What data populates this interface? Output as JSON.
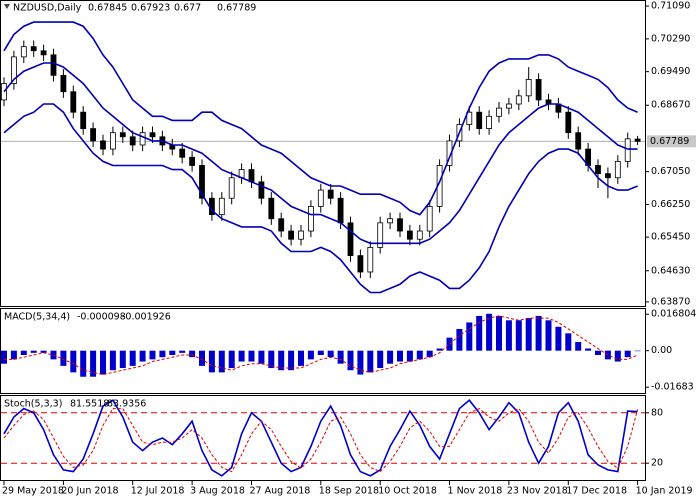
{
  "chart_data": [
    {
      "type": "candlestick",
      "symbol": "NZDUSD,Daily",
      "categories": [
        "29 May 2018",
        null,
        null,
        null,
        null,
        null,
        "20 Jun 2018",
        null,
        null,
        null,
        null,
        null,
        null,
        "12 Jul 2018",
        null,
        null,
        null,
        null,
        null,
        "3 Aug 2018",
        null,
        null,
        null,
        null,
        null,
        "27 Aug 2018",
        null,
        null,
        null,
        null,
        null,
        null,
        "18 Sep 2018",
        null,
        null,
        null,
        null,
        null,
        "10 Oct 2018",
        null,
        null,
        null,
        null,
        null,
        null,
        "1 Nov 2018",
        null,
        null,
        null,
        null,
        null,
        "23 Nov 2018",
        null,
        null,
        null,
        null,
        null,
        "17 Dec 2018",
        null,
        null,
        null,
        null,
        null,
        null,
        "10 Jan 2019"
      ],
      "candles": [
        [
          0.688,
          0.6935,
          0.6865,
          0.692
        ],
        [
          0.692,
          0.7,
          0.6905,
          0.6985
        ],
        [
          0.6985,
          0.7025,
          0.697,
          0.701
        ],
        [
          0.701,
          0.7025,
          0.6985,
          0.7
        ],
        [
          0.7,
          0.7015,
          0.6975,
          0.699
        ],
        [
          0.699,
          0.7005,
          0.6925,
          0.694
        ],
        [
          0.694,
          0.6955,
          0.6885,
          0.69
        ],
        [
          0.69,
          0.6915,
          0.6835,
          0.685
        ],
        [
          0.685,
          0.6865,
          0.6795,
          0.681
        ],
        [
          0.681,
          0.6825,
          0.6765,
          0.678
        ],
        [
          0.678,
          0.6795,
          0.6745,
          0.676
        ],
        [
          0.676,
          0.6815,
          0.6745,
          0.68
        ],
        [
          0.68,
          0.6815,
          0.6775,
          0.679
        ],
        [
          0.679,
          0.6805,
          0.6755,
          0.677
        ],
        [
          0.677,
          0.6815,
          0.6755,
          0.68
        ],
        [
          0.68,
          0.6815,
          0.6775,
          0.679
        ],
        [
          0.679,
          0.6805,
          0.6755,
          0.677
        ],
        [
          0.677,
          0.6785,
          0.6745,
          0.676
        ],
        [
          0.676,
          0.6775,
          0.6725,
          0.674
        ],
        [
          0.674,
          0.6755,
          0.6705,
          0.672
        ],
        [
          0.672,
          0.6735,
          0.6625,
          0.664
        ],
        [
          0.664,
          0.6655,
          0.6585,
          0.66
        ],
        [
          0.66,
          0.6655,
          0.6585,
          0.664
        ],
        [
          0.664,
          0.6705,
          0.6625,
          0.669
        ],
        [
          0.669,
          0.6725,
          0.6675,
          0.671
        ],
        [
          0.671,
          0.6725,
          0.6665,
          0.668
        ],
        [
          0.668,
          0.6695,
          0.6625,
          0.664
        ],
        [
          0.664,
          0.6655,
          0.6575,
          0.659
        ],
        [
          0.659,
          0.6605,
          0.6545,
          0.656
        ],
        [
          0.656,
          0.6575,
          0.6525,
          0.654
        ],
        [
          0.654,
          0.6575,
          0.6525,
          0.656
        ],
        [
          0.656,
          0.6635,
          0.6545,
          0.662
        ],
        [
          0.662,
          0.6675,
          0.6605,
          0.666
        ],
        [
          0.666,
          0.6675,
          0.6625,
          0.664
        ],
        [
          0.664,
          0.6655,
          0.6565,
          0.658
        ],
        [
          0.658,
          0.6595,
          0.6485,
          0.65
        ],
        [
          0.65,
          0.6515,
          0.6445,
          0.646
        ],
        [
          0.646,
          0.6535,
          0.6445,
          0.652
        ],
        [
          0.652,
          0.6595,
          0.6505,
          0.658
        ],
        [
          0.658,
          0.6605,
          0.6565,
          0.659
        ],
        [
          0.659,
          0.6605,
          0.6545,
          0.656
        ],
        [
          0.656,
          0.6575,
          0.6525,
          0.654
        ],
        [
          0.654,
          0.6575,
          0.6525,
          0.656
        ],
        [
          0.656,
          0.6635,
          0.6545,
          0.662
        ],
        [
          0.662,
          0.6735,
          0.6605,
          0.672
        ],
        [
          0.672,
          0.6795,
          0.6705,
          0.678
        ],
        [
          0.678,
          0.6835,
          0.6765,
          0.682
        ],
        [
          0.682,
          0.6865,
          0.6805,
          0.685
        ],
        [
          0.685,
          0.6865,
          0.6795,
          0.681
        ],
        [
          0.681,
          0.6855,
          0.6795,
          0.684
        ],
        [
          0.684,
          0.6875,
          0.6825,
          0.686
        ],
        [
          0.686,
          0.6885,
          0.6845,
          0.687
        ],
        [
          0.687,
          0.6905,
          0.6855,
          0.689
        ],
        [
          0.689,
          0.696,
          0.6875,
          0.693
        ],
        [
          0.693,
          0.6945,
          0.6865,
          0.688
        ],
        [
          0.688,
          0.6895,
          0.6855,
          0.687
        ],
        [
          0.687,
          0.6885,
          0.6835,
          0.685
        ],
        [
          0.685,
          0.6865,
          0.6785,
          0.68
        ],
        [
          0.68,
          0.6815,
          0.6745,
          0.676
        ],
        [
          0.676,
          0.6775,
          0.6705,
          0.672
        ],
        [
          0.672,
          0.6735,
          0.6665,
          0.67
        ],
        [
          0.67,
          0.6715,
          0.664,
          0.669
        ],
        [
          0.669,
          0.6745,
          0.6675,
          0.673
        ],
        [
          0.673,
          0.68,
          0.6715,
          0.6785
        ],
        [
          0.67845,
          0.67923,
          0.677,
          0.67789
        ]
      ],
      "bands": {
        "color": "#0000b4",
        "upper": [
          0.7,
          0.704,
          0.706,
          0.707,
          0.707,
          0.707,
          0.707,
          0.707,
          0.706,
          0.703,
          0.699,
          0.696,
          0.692,
          0.688,
          0.686,
          0.684,
          0.684,
          0.683,
          0.683,
          0.683,
          0.685,
          0.685,
          0.683,
          0.682,
          0.681,
          0.679,
          0.677,
          0.676,
          0.675,
          0.673,
          0.671,
          0.669,
          0.668,
          0.667,
          0.667,
          0.666,
          0.665,
          0.665,
          0.665,
          0.664,
          0.663,
          0.661,
          0.66,
          0.663,
          0.668,
          0.674,
          0.68,
          0.686,
          0.691,
          0.695,
          0.697,
          0.698,
          0.698,
          0.698,
          0.699,
          0.699,
          0.698,
          0.696,
          0.695,
          0.694,
          0.693,
          0.691,
          0.688,
          0.686,
          0.685
        ],
        "middle": [
          0.69,
          0.693,
          0.695,
          0.696,
          0.697,
          0.697,
          0.696,
          0.694,
          0.692,
          0.689,
          0.686,
          0.684,
          0.682,
          0.68,
          0.679,
          0.678,
          0.678,
          0.677,
          0.677,
          0.676,
          0.675,
          0.673,
          0.671,
          0.67,
          0.669,
          0.668,
          0.667,
          0.666,
          0.664,
          0.662,
          0.661,
          0.66,
          0.66,
          0.659,
          0.658,
          0.656,
          0.654,
          0.653,
          0.653,
          0.653,
          0.653,
          0.653,
          0.653,
          0.654,
          0.656,
          0.658,
          0.661,
          0.665,
          0.669,
          0.673,
          0.677,
          0.68,
          0.682,
          0.684,
          0.686,
          0.687,
          0.687,
          0.686,
          0.685,
          0.683,
          0.681,
          0.679,
          0.677,
          0.676,
          0.676
        ],
        "lower": [
          0.68,
          0.682,
          0.684,
          0.685,
          0.687,
          0.687,
          0.685,
          0.681,
          0.678,
          0.675,
          0.673,
          0.672,
          0.672,
          0.672,
          0.672,
          0.672,
          0.672,
          0.671,
          0.671,
          0.669,
          0.665,
          0.661,
          0.659,
          0.658,
          0.657,
          0.657,
          0.657,
          0.656,
          0.653,
          0.651,
          0.651,
          0.651,
          0.652,
          0.651,
          0.649,
          0.646,
          0.643,
          0.641,
          0.641,
          0.642,
          0.643,
          0.645,
          0.646,
          0.645,
          0.644,
          0.642,
          0.642,
          0.644,
          0.647,
          0.651,
          0.657,
          0.662,
          0.666,
          0.67,
          0.673,
          0.675,
          0.676,
          0.676,
          0.675,
          0.672,
          0.669,
          0.667,
          0.666,
          0.666,
          0.667
        ]
      },
      "ylim": [
        0.6377,
        0.7119
      ],
      "yticks": [
        {
          "value": 0.7109,
          "label": "0.71090"
        },
        {
          "value": 0.7029,
          "label": "0.70290"
        },
        {
          "value": 0.6949,
          "label": "0.69490"
        },
        {
          "value": 0.6867,
          "label": "0.68670"
        },
        {
          "value": 0.6705,
          "label": "0.67050"
        },
        {
          "value": 0.6625,
          "label": "0.66250"
        },
        {
          "value": 0.6545,
          "label": "0.65450"
        },
        {
          "value": 0.6463,
          "label": "0.64630"
        },
        {
          "value": 0.6387,
          "label": "0.63870"
        }
      ]
    },
    {
      "type": "macd",
      "title": "MACD(5,34,4)",
      "color": "#0000cc",
      "signal_color": "#e00000",
      "values": [
        -0.006,
        -0.004,
        -0.002,
        -0.001,
        -0.001,
        -0.004,
        -0.007,
        -0.01,
        -0.012,
        -0.012,
        -0.011,
        -0.009,
        -0.008,
        -0.007,
        -0.005,
        -0.004,
        -0.003,
        -0.002,
        -0.001,
        -0.003,
        -0.007,
        -0.01,
        -0.01,
        -0.008,
        -0.005,
        -0.005,
        -0.006,
        -0.008,
        -0.009,
        -0.009,
        -0.007,
        -0.004,
        -0.002,
        -0.003,
        -0.006,
        -0.009,
        -0.011,
        -0.01,
        -0.008,
        -0.006,
        -0.005,
        -0.005,
        -0.004,
        -0.003,
        0.001,
        0.006,
        0.01,
        0.013,
        0.016,
        0.017,
        0.016,
        0.014,
        0.014,
        0.015,
        0.016,
        0.014,
        0.011,
        0.008,
        0.004,
        0.001,
        -0.002,
        -0.004,
        -0.005,
        -0.003,
        -9.8e-05
      ],
      "signal": [
        -0.004,
        -0.004,
        -0.003,
        -0.002,
        -0.001,
        -0.002,
        -0.004,
        -0.006,
        -0.009,
        -0.01,
        -0.011,
        -0.01,
        -0.009,
        -0.008,
        -0.007,
        -0.005,
        -0.004,
        -0.003,
        -0.002,
        -0.002,
        -0.004,
        -0.007,
        -0.008,
        -0.009,
        -0.007,
        -0.006,
        -0.006,
        -0.007,
        -0.008,
        -0.008,
        -0.008,
        -0.006,
        -0.004,
        -0.003,
        -0.004,
        -0.007,
        -0.009,
        -0.01,
        -0.009,
        -0.008,
        -0.006,
        -0.005,
        -0.004,
        -0.003,
        -0.001,
        0.003,
        0.007,
        0.01,
        0.013,
        0.015,
        0.016,
        0.015,
        0.014,
        0.015,
        0.015,
        0.015,
        0.013,
        0.01,
        0.007,
        0.004,
        0.001,
        -0.002,
        -0.004,
        -0.004,
        -0.001926
      ],
      "ylim": [
        -0.0195,
        0.0192
      ],
      "yticks": [
        0.016804,
        {
          "value": 0,
          "label": "0.00"
        },
        -0.01683
      ]
    },
    {
      "type": "stochastic",
      "title": "Stoch(5,3,3)",
      "k_color": "#0000cc",
      "d_color": "#e00000",
      "k": [
        55,
        75,
        85,
        80,
        60,
        30,
        12,
        10,
        25,
        55,
        88,
        95,
        75,
        45,
        35,
        45,
        50,
        42,
        55,
        70,
        35,
        12,
        5,
        15,
        55,
        80,
        70,
        45,
        20,
        10,
        15,
        40,
        70,
        88,
        65,
        30,
        10,
        5,
        12,
        40,
        60,
        82,
        65,
        40,
        25,
        55,
        85,
        95,
        80,
        60,
        75,
        92,
        80,
        45,
        20,
        40,
        80,
        92,
        70,
        30,
        18,
        12,
        10,
        82,
        81.5518
      ],
      "d": [
        50,
        65,
        78,
        82,
        72,
        50,
        28,
        15,
        18,
        35,
        65,
        85,
        85,
        65,
        45,
        42,
        45,
        45,
        50,
        60,
        50,
        30,
        15,
        10,
        30,
        55,
        70,
        60,
        40,
        22,
        14,
        25,
        45,
        70,
        75,
        55,
        30,
        15,
        10,
        22,
        40,
        62,
        70,
        58,
        40,
        40,
        60,
        80,
        85,
        75,
        70,
        80,
        85,
        70,
        45,
        32,
        50,
        75,
        80,
        62,
        40,
        22,
        14,
        40,
        83.9356
      ],
      "ylim": [
        0,
        100
      ],
      "yticks": [
        80,
        20
      ]
    }
  ]
}
